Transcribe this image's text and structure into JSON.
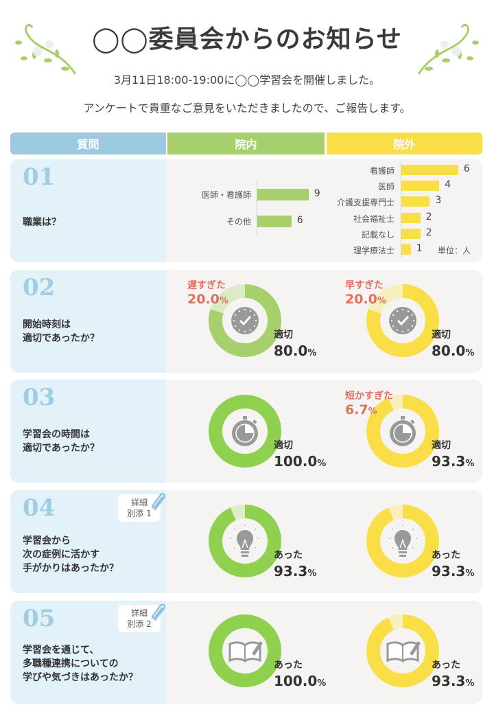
{
  "header": {
    "title": "◯◯委員会からのお知らせ",
    "line1": "3月11日18:00-19:00に◯◯学習会を開催しました。",
    "line2": "アンケートで貴重なご意見をいただきましたので、ご報告します。"
  },
  "columns": {
    "question": "質問",
    "inside": "院内",
    "outside": "院外"
  },
  "colors": {
    "blue": "#9ccbe1",
    "green": "#a6d06b",
    "yellow": "#f9de47",
    "red": "#e07060"
  },
  "questions": [
    {
      "num": "01",
      "text": "職業は？"
    },
    {
      "num": "02",
      "text": "開始時刻は\n適切であったか？"
    },
    {
      "num": "03",
      "text": "学習会の時間は\n適切であったか？"
    },
    {
      "num": "04",
      "text": "学習会から\n次の症例に活かす\n手がかりはあったか？",
      "badge": "詳細\n別添 1"
    },
    {
      "num": "05",
      "text": "学習会を通じて、\n多職種連携についての\n学びや気づきはあったか？",
      "badge": "詳細\n別添 2"
    }
  ],
  "chart_data": [
    {
      "type": "bar",
      "title": "院内 職業",
      "categories": [
        "医師・看護師",
        "その他"
      ],
      "values": [
        9,
        6
      ]
    },
    {
      "type": "bar",
      "title": "院外 職業",
      "categories": [
        "看護師",
        "医師",
        "介護支援専門士",
        "社会福祉士",
        "記載なし",
        "理学療法士"
      ],
      "values": [
        6,
        4,
        3,
        2,
        2,
        1
      ],
      "unit_note": "単位：人"
    },
    {
      "type": "pie",
      "q": "02",
      "side": "inside",
      "icon": "clock-icon",
      "main": {
        "label": "適切",
        "value": 80.0
      },
      "minor": {
        "label": "遅すぎた",
        "value": 20.0
      }
    },
    {
      "type": "pie",
      "q": "02",
      "side": "outside",
      "icon": "clock-icon",
      "main": {
        "label": "適切",
        "value": 80.0
      },
      "minor": {
        "label": "早すぎた",
        "value": 20.0
      }
    },
    {
      "type": "pie",
      "q": "03",
      "side": "inside",
      "icon": "stopwatch-icon",
      "main": {
        "label": "適切",
        "value": 100.0
      }
    },
    {
      "type": "pie",
      "q": "03",
      "side": "outside",
      "icon": "stopwatch-icon",
      "main": {
        "label": "適切",
        "value": 93.3
      },
      "minor": {
        "label": "短かすぎた",
        "value": 6.7
      }
    },
    {
      "type": "pie",
      "q": "04",
      "side": "inside",
      "icon": "lightbulb-icon",
      "main": {
        "label": "あった",
        "value": 93.3
      }
    },
    {
      "type": "pie",
      "q": "04",
      "side": "outside",
      "icon": "lightbulb-icon",
      "main": {
        "label": "あった",
        "value": 93.3
      }
    },
    {
      "type": "pie",
      "q": "05",
      "side": "inside",
      "icon": "book-icon",
      "main": {
        "label": "あった",
        "value": 100.0
      }
    },
    {
      "type": "pie",
      "q": "05",
      "side": "outside",
      "icon": "book-icon",
      "main": {
        "label": "あった",
        "value": 93.3
      }
    }
  ],
  "percent_sign": "%"
}
